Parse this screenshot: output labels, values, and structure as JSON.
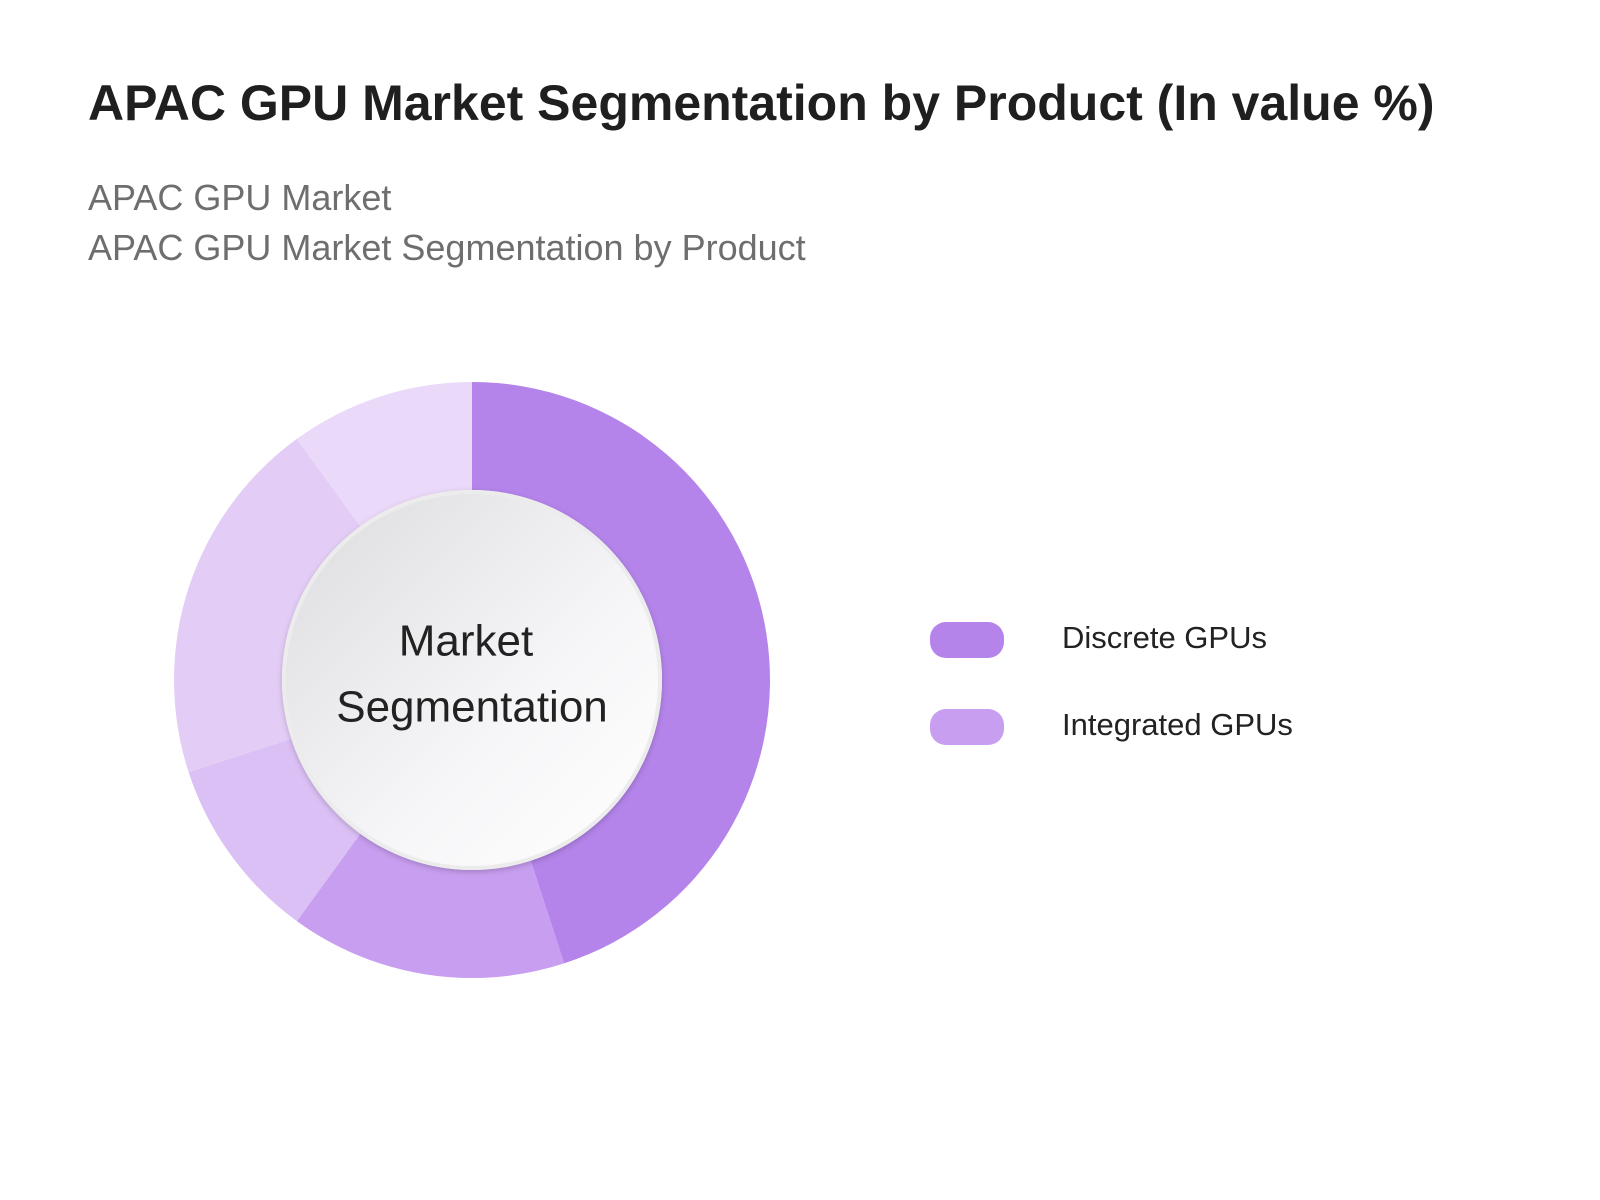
{
  "chart_data": {
    "type": "pie",
    "title": "APAC GPU Market Segmentation by Product (In value %)",
    "subtitle": [
      "APAC GPU Market",
      "APAC GPU Market Segmentation by Product"
    ],
    "center_label": [
      "Market",
      "Segmentation"
    ],
    "categories": [
      "Discrete GPUs",
      "Integrated GPUs",
      null,
      null,
      null
    ],
    "values": [
      45,
      15,
      10,
      20,
      10
    ],
    "colors": [
      "#b484ea",
      "#c89ef0",
      "#dbc0f5",
      "#e3cdf6",
      "#ead9f8"
    ]
  }
}
